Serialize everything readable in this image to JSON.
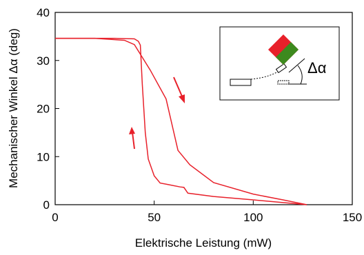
{
  "chart_data": {
    "type": "line",
    "xlabel": "Elektrische Leistung (mW)",
    "ylabel": "Mechanischer Winkel Δα (deg)",
    "annotations": [
      "Δα"
    ],
    "xlim": [
      0,
      150
    ],
    "ylim": [
      0,
      40
    ],
    "xticks": [
      0,
      50,
      100,
      150
    ],
    "yticks": [
      0,
      10,
      20,
      30,
      40
    ],
    "grid": false,
    "series": [
      {
        "color": "#e8202a",
        "x": [
          0,
          20,
          35,
          40,
          48,
          56,
          62,
          68,
          80,
          100,
          115,
          127
        ],
        "values": [
          34.6,
          34.6,
          34.2,
          33.3,
          28,
          22,
          11.3,
          8.3,
          4.6,
          2.2,
          1,
          0
        ]
      },
      {
        "color": "#e8202a",
        "x": [
          0,
          30,
          40,
          42,
          43,
          44,
          45.5,
          47,
          50,
          53,
          57,
          63,
          65,
          67,
          80,
          100,
          127
        ],
        "values": [
          34.6,
          34.6,
          34.5,
          34,
          33.2,
          25,
          15,
          9.5,
          6,
          4.5,
          4.2,
          3.7,
          3.6,
          2.4,
          1.7,
          1,
          0
        ]
      }
    ]
  }
}
